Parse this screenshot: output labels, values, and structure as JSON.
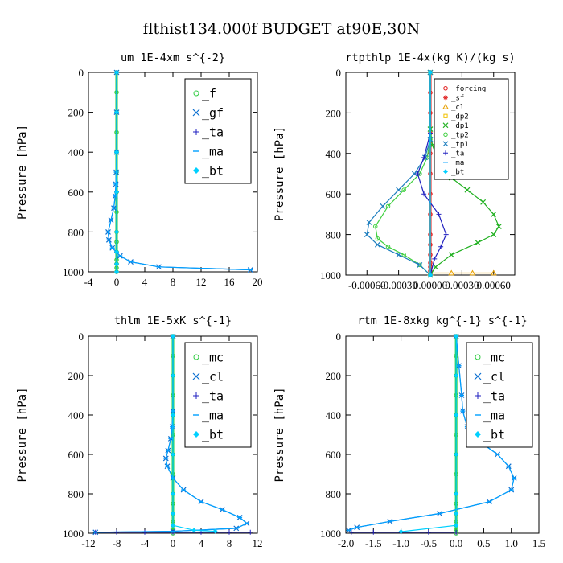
{
  "figure": {
    "title": "flthist134.000f  BUDGET at90E,30N"
  },
  "chart_data": [
    {
      "type": "line",
      "subtitle": "um  1E-4xm s^{-2}",
      "ylabel": "Pressure [hPa]",
      "xlim": [
        -4,
        20
      ],
      "ylim": [
        1000,
        0
      ],
      "xticks": [
        -4,
        0,
        4,
        8,
        12,
        16,
        20
      ],
      "xtick_labels": [
        "-4",
        "0",
        "4",
        "8",
        "12",
        "16",
        "20"
      ],
      "yticks": [
        0,
        200,
        400,
        600,
        800,
        1000
      ],
      "ytick_labels": [
        "0",
        "200",
        "400",
        "600",
        "800",
        "1000"
      ],
      "legend_position": "top-right",
      "legend_font": 15,
      "series": [
        {
          "name": "_f",
          "color": "#2ecc40",
          "marker": "circle",
          "x": [
            0,
            0,
            0,
            0,
            0,
            0,
            0,
            0,
            0,
            0,
            0,
            0,
            0,
            0,
            0
          ],
          "y": [
            0,
            100,
            200,
            300,
            400,
            500,
            600,
            700,
            800,
            850,
            900,
            940,
            960,
            980,
            1000
          ]
        },
        {
          "name": "_gf",
          "color": "#0a6fd1",
          "marker": "x",
          "x": [
            0,
            0,
            0,
            -0.05,
            -0.1,
            -0.2,
            -0.4,
            -0.8,
            -1.2,
            -1.1,
            -0.6,
            0.5,
            2,
            6,
            19
          ],
          "y": [
            0,
            200,
            400,
            500,
            560,
            620,
            680,
            740,
            800,
            840,
            880,
            920,
            950,
            975,
            990
          ]
        },
        {
          "name": "_ta",
          "color": "#2020c0",
          "marker": "plus",
          "x": [
            0,
            0,
            0,
            0,
            0,
            0,
            0,
            0
          ],
          "y": [
            0,
            200,
            400,
            600,
            800,
            900,
            960,
            1000
          ]
        },
        {
          "name": "_ma",
          "color": "#00a0ff",
          "marker": "dash",
          "x": [
            0,
            0,
            0,
            -0.05,
            -0.1,
            -0.2,
            -0.4,
            -0.8,
            -1.2,
            -1.1,
            -0.6,
            0.5,
            2,
            6,
            19
          ],
          "y": [
            0,
            200,
            400,
            500,
            560,
            620,
            680,
            740,
            800,
            840,
            880,
            920,
            950,
            975,
            990
          ]
        },
        {
          "name": "_bt",
          "color": "#00d0ff",
          "marker": "diamond",
          "x": [
            0,
            0,
            0,
            0,
            0,
            0,
            0,
            0
          ],
          "y": [
            0,
            200,
            400,
            600,
            800,
            900,
            960,
            1000
          ]
        }
      ]
    },
    {
      "type": "line",
      "subtitle": "rtpthlp  1E-4x(kg K)/(kg s)",
      "ylabel": "Pressure [hPa]",
      "xlim": [
        -0.0008,
        0.0008
      ],
      "ylim": [
        1000,
        0
      ],
      "xticks": [
        -0.0006,
        -0.0003,
        0,
        0.0003,
        0.0006
      ],
      "xtick_labels": [
        "-0.00060",
        "-0.00030",
        "0.00000",
        "0.00030",
        "0.00060"
      ],
      "yticks": [
        0,
        200,
        400,
        600,
        800,
        1000
      ],
      "ytick_labels": [
        "0",
        "200",
        "400",
        "600",
        "800",
        "1000"
      ],
      "legend_position": "top-right",
      "legend_font": 9,
      "series": [
        {
          "name": "_forcing",
          "color": "#e02020",
          "marker": "circle",
          "x": [
            0,
            0,
            0,
            0,
            0,
            0,
            0,
            0,
            0,
            0,
            0,
            0,
            0,
            0,
            0
          ],
          "y": [
            0,
            100,
            200,
            300,
            400,
            500,
            600,
            700,
            800,
            850,
            900,
            940,
            960,
            980,
            1000
          ]
        },
        {
          "name": "_sf",
          "color": "#e02020",
          "marker": "star",
          "x": [
            0,
            0
          ],
          "y": [
            0,
            1000
          ]
        },
        {
          "name": "_cl",
          "color": "#e8a000",
          "marker": "triangle",
          "x": [
            0,
            0.0002,
            0.0004,
            0.0006
          ],
          "y": [
            990,
            990,
            990,
            990
          ]
        },
        {
          "name": "_dp2",
          "color": "#f0c000",
          "marker": "square",
          "x": [
            0,
            0
          ],
          "y": [
            0,
            1000
          ]
        },
        {
          "name": "_dp1",
          "color": "#20b020",
          "marker": "x",
          "x": [
            0,
            0,
            2e-05,
            8e-05,
            0.0002,
            0.00035,
            0.0005,
            0.0006,
            0.00065,
            0.0006,
            0.00045,
            0.0002,
            5e-05,
            0
          ],
          "y": [
            0,
            280,
            360,
            440,
            520,
            580,
            640,
            700,
            760,
            800,
            840,
            900,
            960,
            1000
          ]
        },
        {
          "name": "_tp2",
          "color": "#40d040",
          "marker": "circle",
          "x": [
            0,
            0,
            -3e-05,
            -0.0001,
            -0.00025,
            -0.0004,
            -0.00052,
            -0.0005,
            -0.0004,
            -0.00025,
            -0.0001,
            0
          ],
          "y": [
            0,
            330,
            420,
            500,
            580,
            660,
            760,
            820,
            860,
            900,
            950,
            1000
          ]
        },
        {
          "name": "_tp1",
          "color": "#1f7fbf",
          "marker": "x",
          "x": [
            0,
            0,
            -5e-05,
            -0.00015,
            -0.0003,
            -0.00045,
            -0.00058,
            -0.0006,
            -0.0005,
            -0.0003,
            -0.0001,
            0
          ],
          "y": [
            0,
            330,
            420,
            500,
            580,
            660,
            740,
            800,
            850,
            900,
            950,
            1000
          ]
        },
        {
          "name": "_ta",
          "color": "#2020c0",
          "marker": "plus",
          "x": [
            0,
            0,
            -6e-05,
            -0.00012,
            -6e-05,
            8e-05,
            0.00015,
            0.0001,
            4e-05,
            0
          ],
          "y": [
            0,
            300,
            420,
            500,
            600,
            700,
            800,
            860,
            920,
            1000
          ]
        },
        {
          "name": "_ma",
          "color": "#00a0ff",
          "marker": "dash",
          "x": [
            0,
            0
          ],
          "y": [
            0,
            1000
          ]
        },
        {
          "name": "_bt",
          "color": "#00d0ff",
          "marker": "diamond",
          "x": [
            0,
            0
          ],
          "y": [
            0,
            1000
          ]
        }
      ]
    },
    {
      "type": "line",
      "subtitle": "thlm  1E-5xK s^{-1}",
      "ylabel": "Pressure [hPa]",
      "xlim": [
        -12,
        12
      ],
      "ylim": [
        1000,
        0
      ],
      "xticks": [
        -12,
        -8,
        -4,
        0,
        4,
        8,
        12
      ],
      "xtick_labels": [
        "-12",
        "-8",
        "-4",
        "0",
        "4",
        "8",
        "12"
      ],
      "yticks": [
        0,
        200,
        400,
        600,
        800,
        1000
      ],
      "ytick_labels": [
        "0",
        "200",
        "400",
        "600",
        "800",
        "1000"
      ],
      "legend_position": "top-right",
      "legend_font": 15,
      "series": [
        {
          "name": "_mc",
          "color": "#2ecc40",
          "marker": "circle",
          "x": [
            0,
            0,
            0,
            0,
            0,
            0,
            0,
            0,
            0,
            0,
            0,
            0,
            0,
            0,
            0
          ],
          "y": [
            0,
            100,
            200,
            300,
            400,
            500,
            600,
            700,
            800,
            850,
            900,
            940,
            960,
            980,
            1000
          ]
        },
        {
          "name": "_cl",
          "color": "#0a6fd1",
          "marker": "x",
          "x": [
            0,
            0,
            -0.1,
            -0.3,
            -0.7,
            -1,
            -0.8,
            0,
            1.5,
            4,
            7,
            9.5,
            10.5,
            9,
            0,
            -11
          ],
          "y": [
            0,
            380,
            460,
            520,
            580,
            620,
            660,
            720,
            780,
            840,
            880,
            920,
            950,
            975,
            990,
            995
          ]
        },
        {
          "name": "_ta",
          "color": "#2020c0",
          "marker": "plus",
          "x": [
            -11,
            -8,
            -4,
            0,
            4,
            8,
            11
          ],
          "y": [
            995,
            995,
            995,
            995,
            995,
            995,
            995
          ]
        },
        {
          "name": "_ma",
          "color": "#00a0ff",
          "marker": "dash",
          "x": [
            0,
            0,
            -0.1,
            -0.3,
            -0.7,
            -1,
            -0.8,
            0,
            1.5,
            4,
            7,
            9.5,
            10.5,
            9,
            0,
            -11
          ],
          "y": [
            0,
            380,
            460,
            520,
            580,
            620,
            660,
            720,
            780,
            840,
            880,
            920,
            950,
            975,
            990,
            995
          ]
        },
        {
          "name": "_bt",
          "color": "#00d0ff",
          "marker": "diamond",
          "x": [
            0,
            0,
            0,
            0,
            0,
            0,
            0,
            3,
            6
          ],
          "y": [
            0,
            200,
            400,
            600,
            800,
            900,
            960,
            985,
            990
          ]
        }
      ]
    },
    {
      "type": "line",
      "subtitle": "rtm  1E-8xkg kg^{-1} s^{-1}",
      "ylabel": "Pressure [hPa]",
      "xlim": [
        -2,
        1.5
      ],
      "ylim": [
        1000,
        0
      ],
      "xticks": [
        -2,
        -1.5,
        -1,
        -0.5,
        0,
        0.5,
        1,
        1.5
      ],
      "xtick_labels": [
        "-2.0",
        "-1.5",
        "-1.0",
        "-0.5",
        "0.0",
        "0.5",
        "1.0",
        "1.5"
      ],
      "yticks": [
        0,
        200,
        400,
        600,
        800,
        1000
      ],
      "ytick_labels": [
        "0",
        "200",
        "400",
        "600",
        "800",
        "1000"
      ],
      "legend_position": "top-right",
      "legend_font": 15,
      "series": [
        {
          "name": "_mc",
          "color": "#2ecc40",
          "marker": "circle",
          "x": [
            0,
            0,
            0,
            0,
            0,
            0,
            0,
            0,
            0,
            0,
            0,
            0,
            0,
            0,
            0
          ],
          "y": [
            0,
            100,
            200,
            300,
            400,
            500,
            600,
            700,
            800,
            850,
            900,
            940,
            960,
            980,
            1000
          ]
        },
        {
          "name": "_cl",
          "color": "#0a6fd1",
          "marker": "x",
          "x": [
            0,
            0.05,
            0.1,
            0.12,
            0.2,
            0.45,
            0.75,
            0.95,
            1.05,
            1.0,
            0.6,
            -0.3,
            -1.2,
            -1.8,
            -1.95
          ],
          "y": [
            0,
            150,
            300,
            380,
            460,
            540,
            600,
            660,
            720,
            780,
            840,
            900,
            940,
            970,
            985
          ]
        },
        {
          "name": "_ta",
          "color": "#2020c0",
          "marker": "plus",
          "x": [
            -1.9,
            -1.5,
            -1,
            -0.5,
            0
          ],
          "y": [
            995,
            995,
            995,
            995,
            995
          ]
        },
        {
          "name": "_ma",
          "color": "#00a0ff",
          "marker": "dash",
          "x": [
            0,
            0.05,
            0.1,
            0.12,
            0.2,
            0.45,
            0.75,
            0.95,
            1.05,
            1.0,
            0.6,
            -0.3,
            -1.2,
            -1.8,
            -1.95
          ],
          "y": [
            0,
            150,
            300,
            380,
            460,
            540,
            600,
            660,
            720,
            780,
            840,
            900,
            940,
            970,
            985
          ]
        },
        {
          "name": "_bt",
          "color": "#00d0ff",
          "marker": "diamond",
          "x": [
            0,
            0,
            0,
            0,
            0,
            0,
            0,
            -1
          ],
          "y": [
            0,
            200,
            400,
            600,
            800,
            900,
            960,
            992
          ]
        }
      ]
    }
  ]
}
